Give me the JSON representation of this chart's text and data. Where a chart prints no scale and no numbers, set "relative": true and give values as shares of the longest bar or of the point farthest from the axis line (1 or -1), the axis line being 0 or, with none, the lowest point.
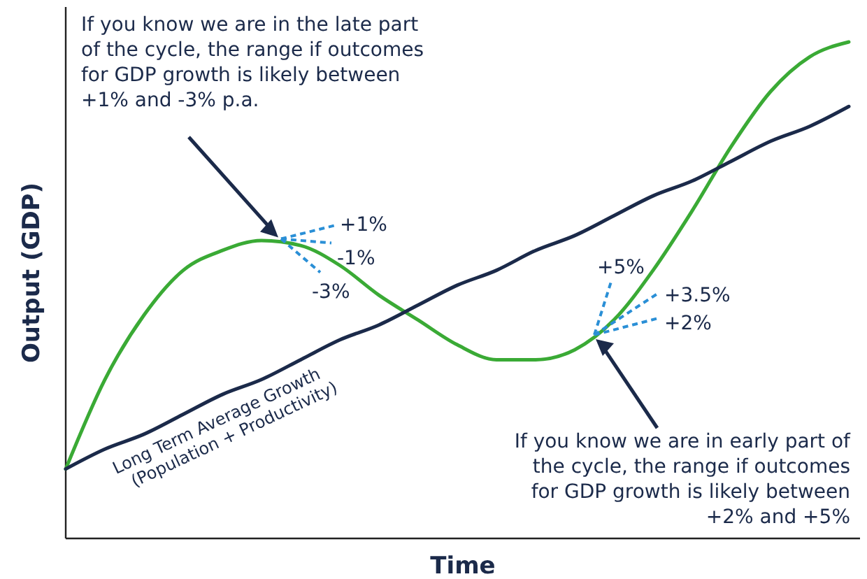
{
  "chart_data": {
    "type": "line",
    "relative": true,
    "xlabel": "Time",
    "ylabel": "Output (GDP)",
    "categories": [
      null,
      null,
      null,
      null,
      null,
      null,
      null,
      null,
      null,
      null,
      null,
      null,
      null,
      null,
      null,
      null,
      null,
      null,
      null,
      null,
      null
    ],
    "series": [
      {
        "color": "#3aaa35",
        "values": [
          0.14,
          0.32,
          0.45,
          0.54,
          0.58,
          0.6,
          0.59,
          0.55,
          0.49,
          0.44,
          0.39,
          0.36,
          0.36,
          0.38,
          0.44,
          0.54,
          0.66,
          0.79,
          0.9,
          0.97,
          1.0
        ]
      },
      {
        "name": "Long Term Average Growth (Population + Productivity)",
        "color": "#1b2a4a",
        "values": [
          0.14,
          0.18,
          0.21,
          0.25,
          0.29,
          0.32,
          0.36,
          0.4,
          0.43,
          0.47,
          0.51,
          0.54,
          0.58,
          0.61,
          0.65,
          0.69,
          0.72,
          0.76,
          0.8,
          0.83,
          0.87
        ]
      }
    ],
    "annotations": [
      "If you know we are in the late part of the cycle, the range if outcomes for GDP growth is likely between +1% and -3% p.a.",
      "If you know we are in early part of the cycle, the range if outcomes for GDP growth is likely between +2% and +5%",
      "+1%",
      "-1%",
      "-3%",
      "+5%",
      "+3.5%",
      "+2%"
    ]
  }
}
